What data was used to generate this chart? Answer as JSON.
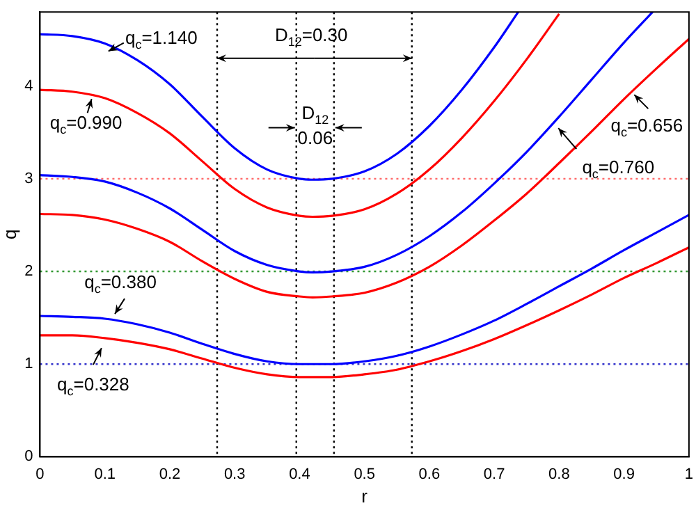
{
  "chart_data": {
    "type": "line",
    "xlabel": "r",
    "ylabel": "q",
    "xlim": [
      0,
      1
    ],
    "ylim": [
      0,
      4.8
    ],
    "xticks": [
      0,
      0.1,
      0.2,
      0.3,
      0.4,
      0.5,
      0.6,
      0.7,
      0.8,
      0.9,
      1
    ],
    "yticks": [
      0,
      1,
      2,
      3,
      4
    ],
    "series": [
      {
        "color": "#0000ff",
        "x": [
          0,
          0.05,
          0.1,
          0.15,
          0.2,
          0.25,
          0.3,
          0.35,
          0.4,
          0.42,
          0.45,
          0.5,
          0.55,
          0.6,
          0.65,
          0.7,
          0.737
        ],
        "values": [
          4.56,
          4.54,
          4.46,
          4.28,
          4.02,
          3.67,
          3.33,
          3.1,
          3.0,
          2.99,
          3.0,
          3.08,
          3.27,
          3.57,
          3.96,
          4.42,
          4.8
        ]
      },
      {
        "color": "#ff0000",
        "x": [
          0,
          0.05,
          0.1,
          0.15,
          0.2,
          0.25,
          0.3,
          0.35,
          0.4,
          0.42,
          0.45,
          0.5,
          0.55,
          0.6,
          0.65,
          0.7,
          0.75,
          0.8
        ],
        "values": [
          3.96,
          3.94,
          3.87,
          3.71,
          3.49,
          3.19,
          2.89,
          2.69,
          2.6,
          2.59,
          2.6,
          2.67,
          2.84,
          3.1,
          3.44,
          3.84,
          4.29,
          4.78
        ]
      },
      {
        "color": "#0000ff",
        "x": [
          0,
          0.05,
          0.1,
          0.15,
          0.2,
          0.25,
          0.3,
          0.35,
          0.4,
          0.42,
          0.45,
          0.5,
          0.55,
          0.6,
          0.65,
          0.7,
          0.75,
          0.8,
          0.85,
          0.9,
          0.944
        ],
        "values": [
          3.04,
          3.02,
          2.97,
          2.85,
          2.68,
          2.45,
          2.22,
          2.07,
          2.0,
          1.99,
          2.0,
          2.05,
          2.18,
          2.38,
          2.64,
          2.95,
          3.29,
          3.67,
          4.07,
          4.47,
          4.8
        ]
      },
      {
        "color": "#ff0000",
        "x": [
          0,
          0.05,
          0.1,
          0.15,
          0.2,
          0.25,
          0.3,
          0.35,
          0.4,
          0.42,
          0.45,
          0.5,
          0.55,
          0.6,
          0.65,
          0.7,
          0.75,
          0.8,
          0.85,
          0.9,
          0.95,
          1
        ],
        "values": [
          2.62,
          2.61,
          2.56,
          2.46,
          2.32,
          2.11,
          1.92,
          1.78,
          1.73,
          1.72,
          1.73,
          1.77,
          1.88,
          2.05,
          2.28,
          2.55,
          2.84,
          3.17,
          3.51,
          3.86,
          4.19,
          4.51
        ]
      },
      {
        "color": "#0000ff",
        "x": [
          0,
          0.05,
          0.1,
          0.15,
          0.2,
          0.25,
          0.3,
          0.35,
          0.4,
          0.42,
          0.45,
          0.5,
          0.55,
          0.6,
          0.65,
          0.7,
          0.75,
          0.8,
          0.85,
          0.9,
          0.95,
          1
        ],
        "values": [
          1.52,
          1.51,
          1.49,
          1.43,
          1.34,
          1.22,
          1.11,
          1.03,
          1.0,
          1.0,
          1.0,
          1.03,
          1.09,
          1.19,
          1.32,
          1.47,
          1.65,
          1.84,
          2.03,
          2.23,
          2.42,
          2.61
        ]
      },
      {
        "color": "#ff0000",
        "x": [
          0,
          0.05,
          0.1,
          0.15,
          0.2,
          0.25,
          0.3,
          0.35,
          0.4,
          0.42,
          0.45,
          0.5,
          0.55,
          0.6,
          0.65,
          0.7,
          0.75,
          0.8,
          0.85,
          0.9,
          0.95,
          1
        ],
        "values": [
          1.31,
          1.31,
          1.28,
          1.23,
          1.16,
          1.06,
          0.96,
          0.89,
          0.86,
          0.86,
          0.86,
          0.89,
          0.94,
          1.03,
          1.14,
          1.27,
          1.42,
          1.58,
          1.75,
          1.93,
          2.09,
          2.26
        ]
      }
    ],
    "ref_lines": [
      {
        "axis": "x",
        "value": 0.273,
        "color": "#000000",
        "line_style": "dotted"
      },
      {
        "axis": "x",
        "value": 0.573,
        "color": "#000000",
        "line_style": "dotted"
      },
      {
        "axis": "x",
        "value": 0.395,
        "color": "#000000",
        "line_style": "dotted"
      },
      {
        "axis": "x",
        "value": 0.453,
        "color": "#000000",
        "line_style": "dotted"
      },
      {
        "axis": "y",
        "value": 1,
        "color": "#3333cc",
        "line_style": "dotted"
      },
      {
        "axis": "y",
        "value": 2,
        "color": "#339933",
        "line_style": "dotted"
      },
      {
        "axis": "y",
        "value": 3,
        "color": "#ff6666",
        "line_style": "dotted"
      }
    ],
    "annotations": [
      "q$_{c}$=1.140",
      "q$_{c}$=0.990",
      "q$_{c}$=0.760",
      "q$_{c}$=0.656",
      "q$_{c}$=0.380",
      "q$_{c}$=0.328",
      {
        "text": "D$_{12}$=0.30",
        "x": 0.573,
        "y": 4.3
      },
      "D$_{12}$",
      "0.06"
    ]
  }
}
